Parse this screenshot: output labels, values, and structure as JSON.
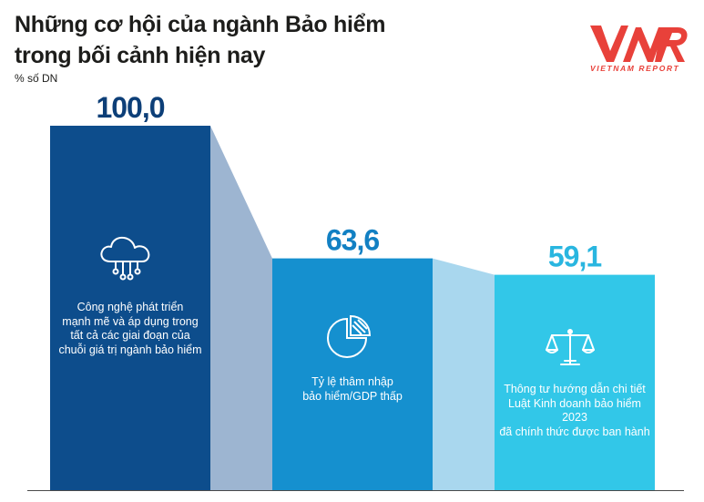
{
  "title_line1": "Những cơ hội của ngành Bảo hiểm",
  "title_line2": "trong bối cảnh hiện nay",
  "unit": "% số DN",
  "logo": {
    "mark": "VNR",
    "subtitle": "VIETNAM REPORT",
    "color": "#e8413a"
  },
  "chart_data": {
    "type": "bar",
    "categories": [
      "Công nghệ phát triển mạnh mẽ và áp dụng trong tất cả các giai đoạn của chuỗi giá trị ngành bảo hiểm",
      "Tỷ lệ thâm nhập bảo hiểm/GDP thấp",
      "Thông tư hướng dẫn chi tiết Luật Kinh doanh bảo hiểm 2023 đã chính thức được ban hành"
    ],
    "values": [
      100.0,
      63.6,
      59.1
    ],
    "value_labels": [
      "100,0",
      "63,6",
      "59,1"
    ],
    "ylim": [
      0,
      100
    ],
    "bar_colors": [
      "#0d4d8c",
      "#1590cf",
      "#32c7e8"
    ],
    "label_colors": [
      "#0d3f78",
      "#1280c3",
      "#29b6e0"
    ],
    "connector_colors": [
      "#9db5d1",
      "#a9d7ee"
    ],
    "icons": [
      "cloud-network-icon",
      "pie-chart-icon",
      "scales-icon"
    ]
  },
  "bars": [
    {
      "lines": [
        "Công nghệ phát triển",
        "mạnh mẽ và áp dụng trong",
        "tất cả các giai đoạn của",
        "chuỗi giá trị ngành bảo hiểm"
      ]
    },
    {
      "lines": [
        "Tỷ lệ thâm nhập",
        "bảo hiểm/GDP thấp"
      ]
    },
    {
      "lines": [
        "Thông tư hướng dẫn chi tiết",
        "Luật Kinh doanh bảo hiểm 2023",
        "đã chính thức được ban hành"
      ]
    }
  ]
}
